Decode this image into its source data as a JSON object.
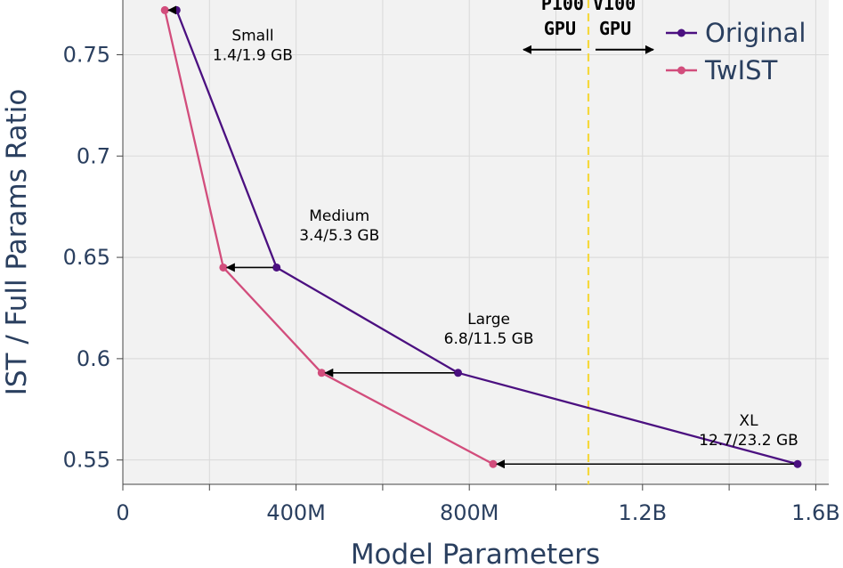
{
  "chart_data": {
    "type": "line",
    "xlabel": "Model Parameters",
    "ylabel": "IST / Full Params Ratio",
    "xlim": [
      0,
      1630000000
    ],
    "ylim": [
      0.538,
      0.777
    ],
    "x_ticks": [
      {
        "value": 0,
        "label": "0"
      },
      {
        "value": 400000000,
        "label": "400M"
      },
      {
        "value": 800000000,
        "label": "800M"
      },
      {
        "value": 1200000000,
        "label": "1.2B"
      },
      {
        "value": 1600000000,
        "label": "1.6B"
      }
    ],
    "x_minor_ticks": [
      200000000,
      600000000,
      1000000000,
      1400000000
    ],
    "y_ticks": [
      {
        "value": 0.55,
        "label": "0.55"
      },
      {
        "value": 0.6,
        "label": "0.6"
      },
      {
        "value": 0.65,
        "label": "0.65"
      },
      {
        "value": 0.7,
        "label": "0.7"
      },
      {
        "value": 0.75,
        "label": "0.75"
      }
    ],
    "grid": true,
    "legend_position": "top-right",
    "series": [
      {
        "name": "Original",
        "color": "#4b1080",
        "x": [
          124000000,
          355000000,
          774000000,
          1558000000
        ],
        "y": [
          0.772,
          0.645,
          0.593,
          0.548
        ]
      },
      {
        "name": "TwIST",
        "color": "#d24d7c",
        "x": [
          97000000,
          232000000,
          459000000,
          855000000
        ],
        "y": [
          0.772,
          0.645,
          0.593,
          0.548
        ]
      }
    ],
    "arrows": [
      {
        "from_x": 124000000,
        "to_x": 97000000,
        "y": 0.772
      },
      {
        "from_x": 355000000,
        "to_x": 232000000,
        "y": 0.645
      },
      {
        "from_x": 774000000,
        "to_x": 459000000,
        "y": 0.593
      },
      {
        "from_x": 1558000000,
        "to_x": 855000000,
        "y": 0.548
      }
    ],
    "annotations": [
      {
        "lines": [
          "Small",
          "1.4/1.9 GB"
        ],
        "x": 300000000,
        "y": 0.757
      },
      {
        "lines": [
          "Medium",
          "3.4/5.3 GB"
        ],
        "x": 500000000,
        "y": 0.668
      },
      {
        "lines": [
          "Large",
          "6.8/11.5 GB"
        ],
        "x": 845000000,
        "y": 0.617
      },
      {
        "lines": [
          "XL",
          "12.7/23.2 GB"
        ],
        "x": 1445000000,
        "y": 0.567
      }
    ],
    "gpu_divider": {
      "x": 1075000000,
      "color": "#f6d83c",
      "left_label": [
        "P100",
        "GPU"
      ],
      "right_label": [
        "V100",
        "GPU"
      ],
      "label_y": 0.7625,
      "arrow_y": 0.7525,
      "left_arrow_end_x": 925000000,
      "right_arrow_end_x": 1225000000
    }
  }
}
